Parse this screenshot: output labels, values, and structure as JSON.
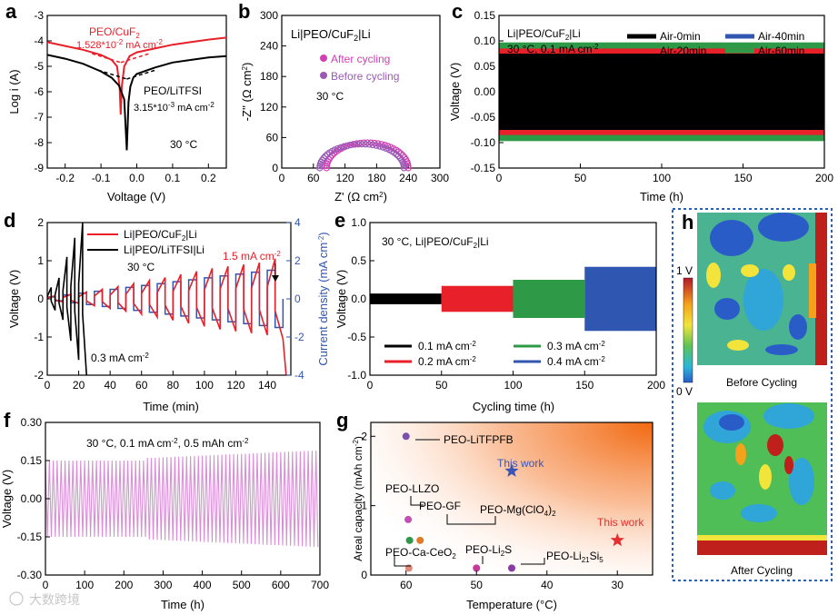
{
  "figure": {
    "watermark": "大数跨境",
    "colors": {
      "red": "#e8202a",
      "black": "#000000",
      "blue": "#2f56b0",
      "green": "#2e9a48",
      "magenta": "#d23fb5",
      "purple": "#9b59b6",
      "pink": "#d88fd6",
      "heat_border": "#2f5fad"
    }
  },
  "chart_data": [
    {
      "panel": "a",
      "type": "line",
      "xlabel": "Voltage (V)",
      "ylabel": "Log i (A)",
      "xlim": [
        -0.25,
        0.25
      ],
      "ylim": [
        -9,
        -3
      ],
      "xticks": [
        "-0.2",
        "-0.1",
        "0.0",
        "0.1",
        "0.2"
      ],
      "xtick_values": [
        -0.2,
        -0.1,
        0.0,
        0.1,
        0.2
      ],
      "yticks": [
        "-9",
        "-8",
        "-7",
        "-6",
        "-5",
        "-4",
        "-3"
      ],
      "ytick_values": [
        -9,
        -8,
        -7,
        -6,
        -5,
        -4,
        -3
      ],
      "annotations": {
        "red_name": "PEO/CuF",
        "red_sub": "2",
        "red_value": "1.528*10",
        "red_exp": "-2",
        "red_unit": " mA cm",
        "red_unit_exp": "-2",
        "black_name": "PEO/LiTFSI",
        "black_value": "3.15*10",
        "black_exp": "-3",
        "black_unit": " mA cm",
        "black_unit_exp": "-2",
        "temp": "30 °C"
      },
      "series": [
        {
          "name": "PEO/CuF2",
          "color": "red",
          "x": [
            -0.25,
            -0.2,
            -0.15,
            -0.1,
            -0.07,
            -0.055,
            -0.048,
            -0.045,
            -0.042,
            -0.035,
            -0.02,
            0.0,
            0.05,
            0.1,
            0.15,
            0.2,
            0.25
          ],
          "y": [
            -4.05,
            -4.2,
            -4.35,
            -4.55,
            -4.75,
            -5.0,
            -5.8,
            -6.9,
            -5.8,
            -5.0,
            -4.6,
            -4.45,
            -4.3,
            -4.15,
            -4.05,
            -3.95,
            -3.87
          ]
        },
        {
          "name": "PEO/LiTFSI",
          "color": "black",
          "x": [
            -0.25,
            -0.2,
            -0.15,
            -0.1,
            -0.07,
            -0.05,
            -0.035,
            -0.028,
            -0.023,
            -0.018,
            -0.01,
            0.0,
            0.05,
            0.1,
            0.15,
            0.2,
            0.25
          ],
          "y": [
            -4.55,
            -4.7,
            -4.9,
            -5.2,
            -5.45,
            -5.75,
            -6.3,
            -8.3,
            -6.4,
            -5.8,
            -5.45,
            -5.3,
            -5.05,
            -4.85,
            -4.75,
            -4.65,
            -4.6
          ]
        }
      ]
    },
    {
      "panel": "b",
      "type": "scatter",
      "title": "Li|PEO/CuF2|Li",
      "title_main": "Li|PEO/CuF",
      "title_sub": "2",
      "title_tail": "|Li",
      "xlabel": "Z' (Ω cm²)",
      "xlabel_main": "Z' (Ω cm",
      "xlabel_sup": "2",
      "xlabel_tail": ")",
      "ylabel": "-Z'' (Ω cm²)",
      "ylabel_main": "-Z'' (Ω cm",
      "ylabel_sup": "2",
      "ylabel_tail": ")",
      "xlim": [
        0,
        300
      ],
      "ylim": [
        0,
        300
      ],
      "xticks": [
        "0",
        "60",
        "120",
        "180",
        "240",
        "300"
      ],
      "xtick_values": [
        0,
        60,
        120,
        180,
        240,
        300
      ],
      "yticks": [
        "0",
        "60",
        "120",
        "180",
        "240",
        "300"
      ],
      "ytick_values": [
        0,
        60,
        120,
        180,
        240,
        300
      ],
      "temp": "30 °C",
      "series": [
        {
          "name": "After cycling",
          "color": "magenta",
          "r_start": 85,
          "r_end": 240,
          "peak": 50
        },
        {
          "name": "Before cycling",
          "color": "purple",
          "r_start": 72,
          "r_end": 232,
          "peak": 47
        }
      ]
    },
    {
      "panel": "c",
      "type": "area",
      "title_line1": "Li|PEO/CuF2|Li",
      "title_line1_main": "Li|PEO/CuF",
      "title_line1_sub": "2",
      "title_line1_tail": "|Li",
      "title_line2": "30 °C, 0.1 mA cm-2",
      "title_line2_main": "30 °C, 0.1 mA cm",
      "title_line2_sup": "-2",
      "xlabel": "Time (h)",
      "ylabel": "Voltage (V)",
      "xlim": [
        0,
        200
      ],
      "ylim": [
        -0.15,
        0.15
      ],
      "xticks": [
        "0",
        "50",
        "100",
        "150",
        "200"
      ],
      "xtick_values": [
        0,
        50,
        100,
        150,
        200
      ],
      "yticks": [
        "-0.15",
        "-0.10",
        "-0.05",
        "0.00",
        "0.05",
        "0.10",
        "0.15"
      ],
      "ytick_values": [
        -0.15,
        -0.1,
        -0.05,
        0.0,
        0.05,
        0.1,
        0.15
      ],
      "series": [
        {
          "name": "Air-0min",
          "color": "black",
          "amp": 0.075
        },
        {
          "name": "Air-40min",
          "color": "blue",
          "amp": 0.095
        },
        {
          "name": "Air-20min",
          "color": "red",
          "amp": 0.085
        },
        {
          "name": "Air-60min",
          "color": "green",
          "amp": 0.097
        }
      ]
    },
    {
      "panel": "d",
      "type": "line",
      "xlabel": "Time (min)",
      "ylabel": "Voltage (V)",
      "ylabel2": "Current density (mA cm⁻²)",
      "ylabel2_main": "Current density (mA cm",
      "ylabel2_sup": "-2",
      "ylabel2_tail": ")",
      "xlim": [
        0,
        155
      ],
      "ylim": [
        -2,
        2
      ],
      "y2lim": [
        -4,
        4
      ],
      "xticks": [
        "0",
        "20",
        "40",
        "60",
        "80",
        "100",
        "120",
        "140"
      ],
      "xtick_values": [
        0,
        20,
        40,
        60,
        80,
        100,
        120,
        140
      ],
      "yticks": [
        "-2",
        "-1",
        "0",
        "1",
        "2"
      ],
      "ytick_values": [
        -2,
        -1,
        0,
        1,
        2
      ],
      "y2ticks": [
        "-4",
        "-2",
        "0",
        "2",
        "4"
      ],
      "y2tick_values": [
        -4,
        -2,
        0,
        2,
        4
      ],
      "legend": [
        "Li|PEO/CuF2|Li",
        "Li|PEO/LiTFSI|Li"
      ],
      "legend_main": [
        "Li|PEO/CuF",
        "Li|PEO/LiTFSI|Li"
      ],
      "legend_sub": "2",
      "legend_tail": "|Li",
      "temp": "30 °C",
      "label_high": "1.5 mA cm",
      "label_high_sup": "-2",
      "label_low": "0.3 mA cm",
      "label_low_sup": "-2",
      "step_current": [
        0.1,
        0.2,
        0.3,
        0.4,
        0.5,
        0.6,
        0.7,
        0.8,
        0.9,
        1.0,
        1.1,
        1.2,
        1.3,
        1.4,
        1.5
      ],
      "cuf2_peak": [
        0.08,
        0.12,
        0.18,
        0.25,
        0.32,
        0.4,
        0.48,
        0.56,
        0.64,
        0.72,
        0.8,
        0.85,
        0.9,
        0.95,
        1.05
      ],
      "litfsi_peak": [
        0.3,
        0.55,
        1.1,
        1.6,
        2.0
      ]
    },
    {
      "panel": "e",
      "type": "area",
      "title": "30 °C, Li|PEO/CuF2|Li",
      "title_main": "30 °C, Li|PEO/CuF",
      "title_sub": "2",
      "title_tail": "|Li",
      "xlabel": "Cycling time (h)",
      "ylabel": "Voltage (V)",
      "xlim": [
        0,
        200
      ],
      "ylim": [
        -1.0,
        1.0
      ],
      "xticks": [
        "0",
        "50",
        "100",
        "150",
        "200"
      ],
      "xtick_values": [
        0,
        50,
        100,
        150,
        200
      ],
      "yticks": [
        "-1.0",
        "-0.5",
        "0.0",
        "0.5",
        "1.0"
      ],
      "ytick_values": [
        -1.0,
        -0.5,
        0.0,
        0.5,
        1.0
      ],
      "series": [
        {
          "name": "0.1 mA cm-2",
          "label_main": "0.1 mA cm",
          "color": "black",
          "start": 0,
          "end": 50,
          "amp": 0.07
        },
        {
          "name": "0.3 mA cm-2",
          "label_main": "0.3 mA cm",
          "color": "green",
          "start": 100,
          "end": 150,
          "amp": 0.25
        },
        {
          "name": "0.2 mA cm-2",
          "label_main": "0.2 mA cm",
          "color": "red",
          "start": 50,
          "end": 100,
          "amp": 0.17
        },
        {
          "name": "0.4 mA cm-2",
          "label_main": "0.4 mA cm",
          "color": "blue",
          "start": 150,
          "end": 200,
          "amp": 0.42
        }
      ],
      "legend_sup": "-2"
    },
    {
      "panel": "f",
      "type": "line",
      "title": "30 °C, 0.1 mA cm-2, 0.5 mAh cm-2",
      "title_a": "30 °C, 0.1 mA cm",
      "title_sup1": "-2",
      "title_b": ", 0.5 mAh cm",
      "title_sup2": "-2",
      "xlabel": "Time (h)",
      "ylabel": "Voltage (V)",
      "xlim": [
        0,
        700
      ],
      "ylim": [
        -0.3,
        0.3
      ],
      "xticks": [
        "0",
        "100",
        "200",
        "300",
        "400",
        "500",
        "600",
        "700"
      ],
      "xtick_values": [
        0,
        100,
        200,
        300,
        400,
        500,
        600,
        700
      ],
      "yticks": [
        "-0.30",
        "-0.15",
        "0.00",
        "0.15",
        "0.30"
      ],
      "ytick_values": [
        -0.3,
        -0.15,
        0.0,
        0.15,
        0.3
      ],
      "period_h": 10,
      "amp_start": 0.15,
      "amp_mid": 0.16,
      "amp_end": 0.19,
      "step_at": 260
    },
    {
      "panel": "g",
      "type": "scatter",
      "xlabel": "Temperature (°C)",
      "ylabel": "Areal capacity (mAh cm-2)",
      "ylabel_main": "Areal capacity (mAh cm",
      "ylabel_sup": "-2",
      "ylabel_tail": ")",
      "xlim": [
        65,
        25
      ],
      "ylim": [
        0,
        2.2
      ],
      "xticks": [
        "60",
        "50",
        "40",
        "30"
      ],
      "xtick_values": [
        60,
        50,
        40,
        30
      ],
      "yticks": [
        "0",
        "1",
        "2"
      ],
      "ytick_values": [
        0,
        1,
        2
      ],
      "points": [
        {
          "name": "PEO-LiTFPFB",
          "x": 60,
          "y": 2.0,
          "color": "#7b4fb0",
          "marker": "circle"
        },
        {
          "name": "This work",
          "x": 45,
          "y": 1.5,
          "color": "#3a55b5",
          "marker": "star"
        },
        {
          "name": "PEO-LLZO",
          "x": 60,
          "y": 0.8,
          "color": "#c24fb3",
          "marker": "circle"
        },
        {
          "name": "PEO-GF",
          "x": 60,
          "y": 0.5,
          "color": "#2e9a48",
          "marker": "circle"
        },
        {
          "name": "PEO-Mg(ClO4)2",
          "x": 58,
          "y": 0.5,
          "color": "#e07b28",
          "marker": "circle"
        },
        {
          "name": "This work",
          "x": 30,
          "y": 0.5,
          "color": "#e23030",
          "marker": "star"
        },
        {
          "name": "PEO-Li2S",
          "x": 50,
          "y": 0.1,
          "color": "#c43a9a",
          "marker": "circle"
        },
        {
          "name": "PEO-Ca-CeO2",
          "x": 60,
          "y": 0.1,
          "color": "#e08a7a",
          "marker": "circle"
        },
        {
          "name": "PEO-Li21Si5",
          "x": 45,
          "y": 0.1,
          "color": "#8a3aa3",
          "marker": "circle"
        }
      ],
      "label_parts": {
        "mg_main": "PEO-Mg(ClO",
        "mg_sub": "4",
        "mg_tail": ")",
        "mg_sub2": "2",
        "li2s_main": "PEO-Li",
        "li2s_sub": "2",
        "li2s_tail": "S",
        "ceo_main": "PEO-Ca-CeO",
        "ceo_sub": "2",
        "si_main": "PEO-Li",
        "si_sub": "21",
        "si_tail": "Si",
        "si_sub2": "5"
      }
    },
    {
      "panel": "h",
      "type": "heatmap",
      "scale_max": "1 V",
      "scale_min": "0 V",
      "label_before": "Before Cycling",
      "label_after": "After Cycling"
    }
  ],
  "panel_letters": [
    "a",
    "b",
    "c",
    "d",
    "e",
    "f",
    "g",
    "h"
  ]
}
